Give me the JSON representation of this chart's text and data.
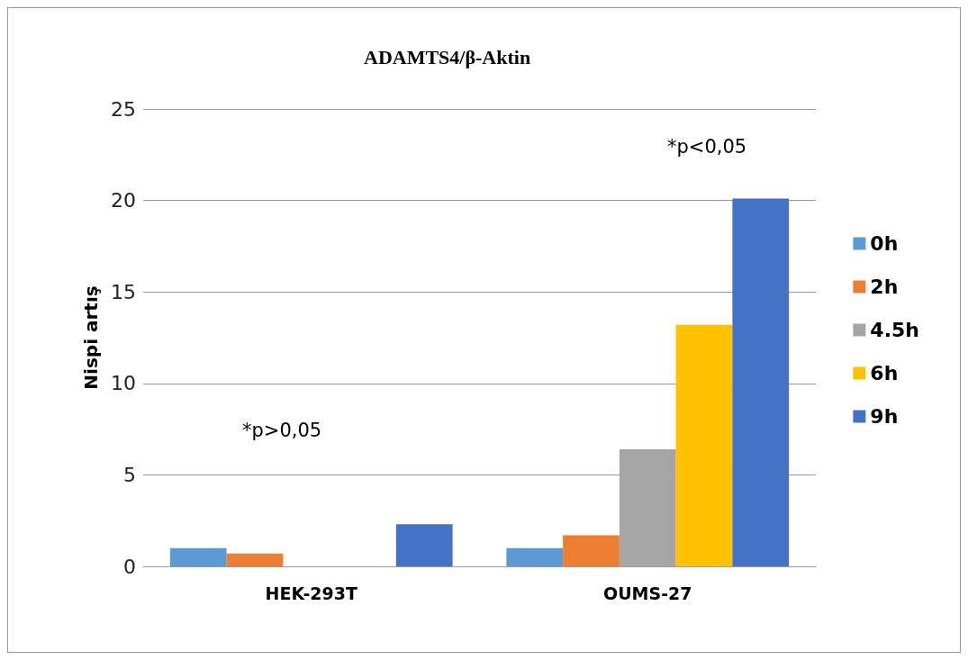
{
  "chart_data": {
    "type": "bar",
    "title": "ADAMTS4/β-Aktin",
    "ylabel": "Nispi artış",
    "categories": [
      "HEK-293T",
      "OUMS-27"
    ],
    "series": [
      {
        "name": "0h",
        "color": "#5b9bd5",
        "values": [
          1.0,
          1.0
        ]
      },
      {
        "name": "2h",
        "color": "#ed7d31",
        "values": [
          0.7,
          1.7
        ]
      },
      {
        "name": "4.5h",
        "color": "#a5a5a5",
        "values": [
          null,
          6.4
        ]
      },
      {
        "name": "6h",
        "color": "#ffc000",
        "values": [
          null,
          13.2
        ]
      },
      {
        "name": "9h",
        "color": "#4472c4",
        "values": [
          2.3,
          20.1
        ]
      }
    ],
    "ylim": [
      0,
      25
    ],
    "yticks": [
      0,
      5,
      10,
      15,
      20,
      25
    ],
    "grid": "y",
    "legend": "right",
    "annotations": [
      "*p>0,05",
      "*p<0,05"
    ]
  }
}
